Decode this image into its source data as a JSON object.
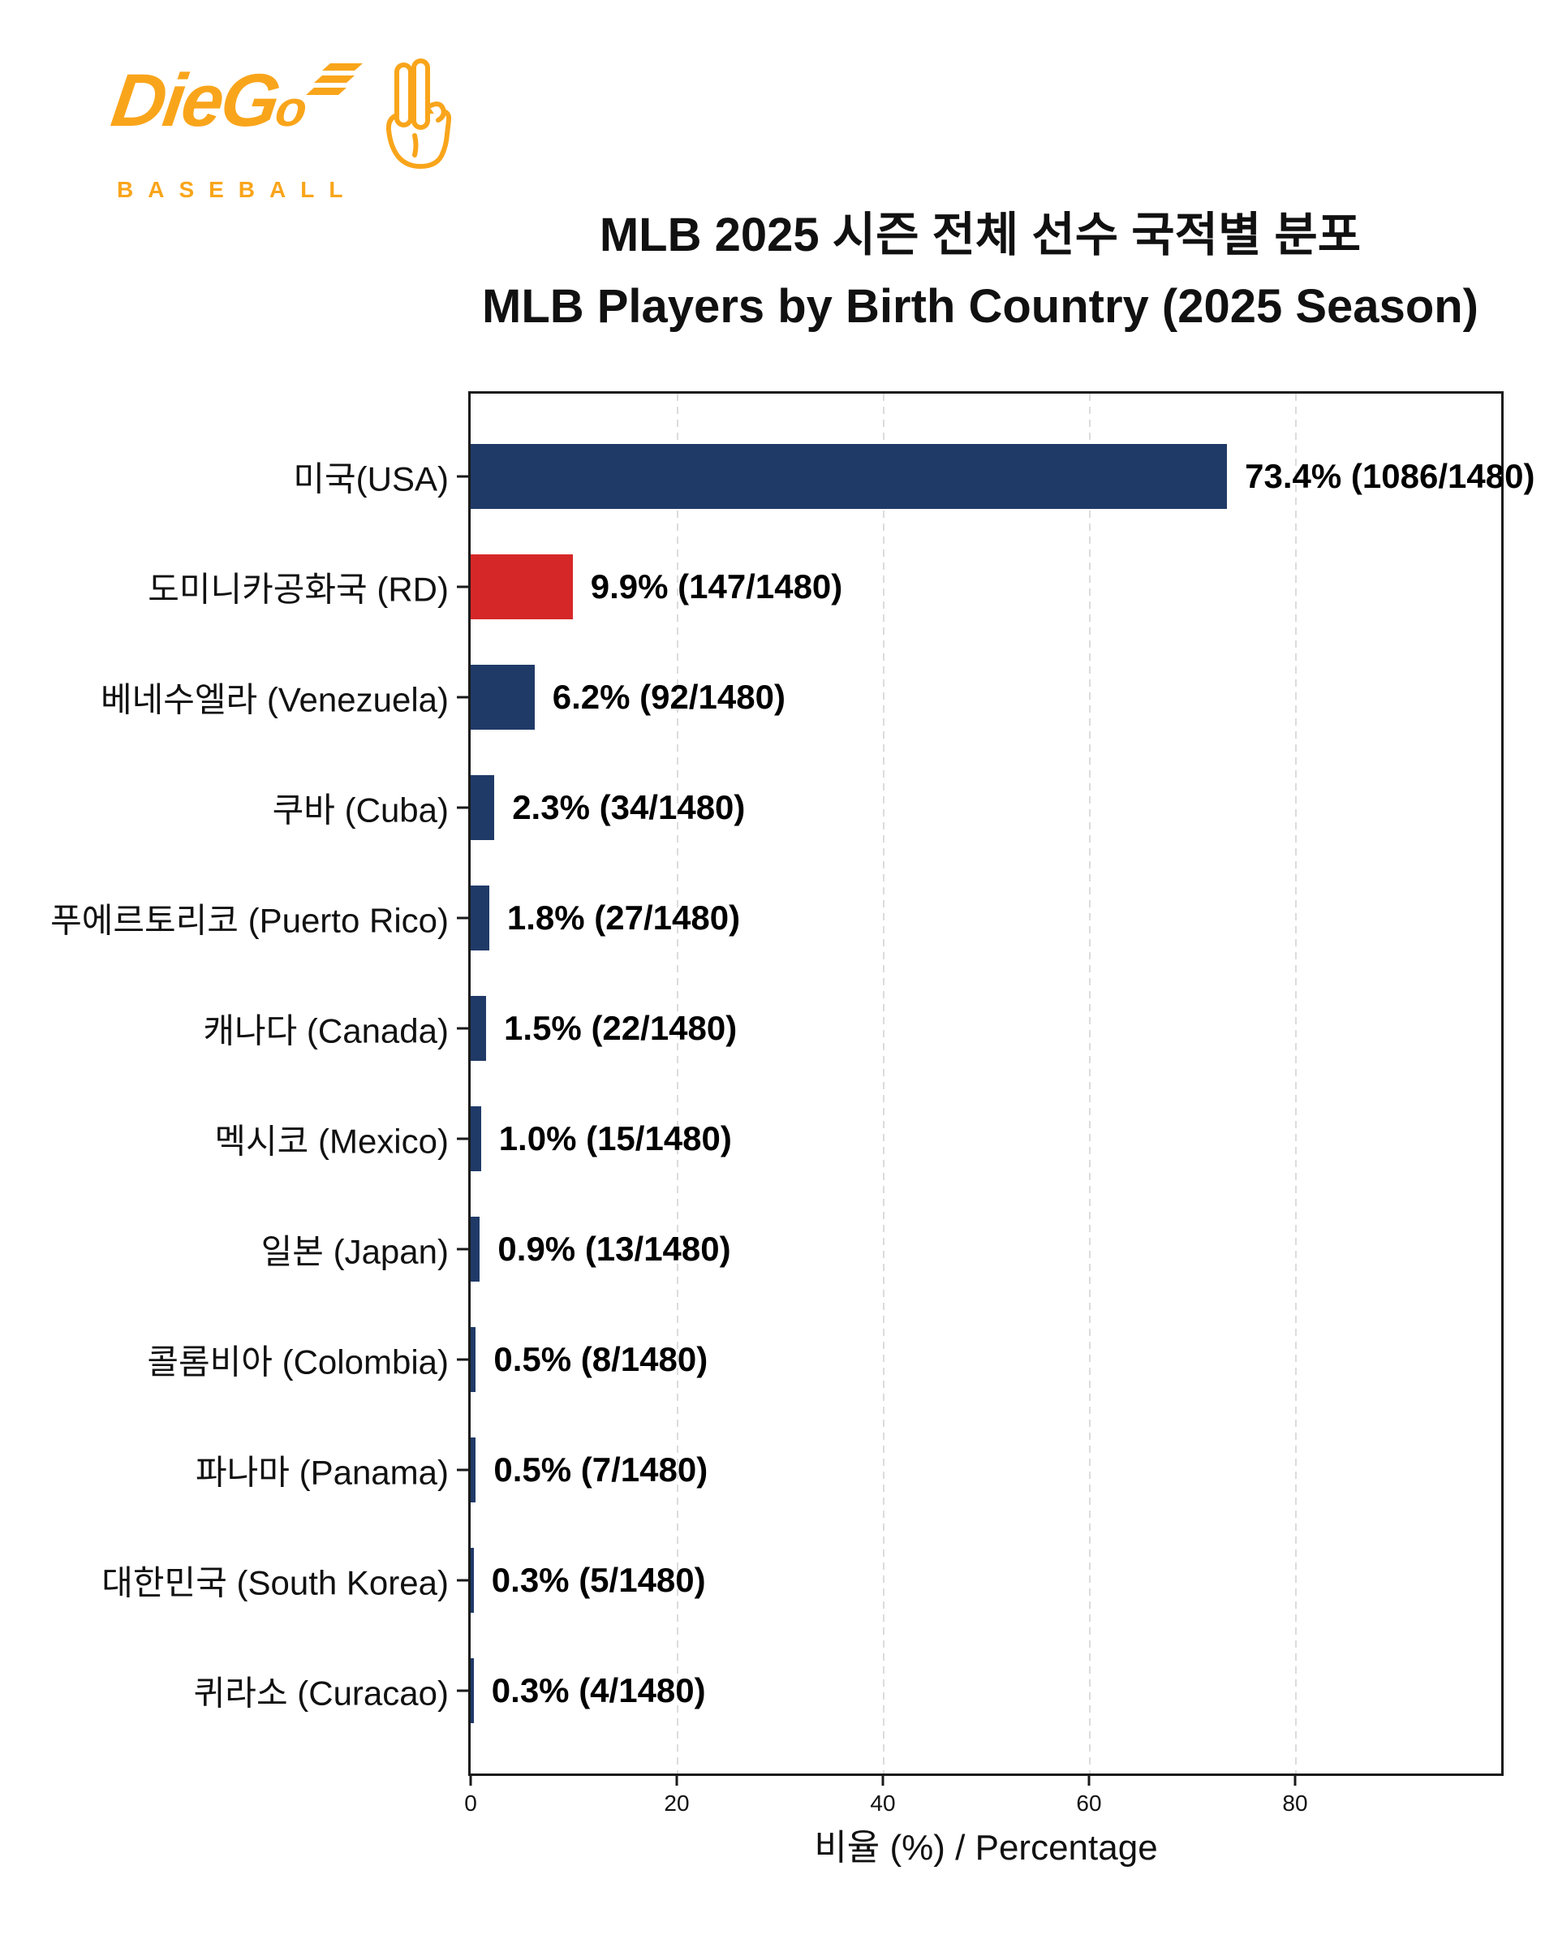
{
  "logo": {
    "brand_main": "DieG",
    "brand_tail": "o",
    "subtitle": "BASEBALL",
    "brand_color": "#F9A51B",
    "icon": "two-fingers-hand-icon"
  },
  "title": {
    "line1": "MLB 2025 시즌 전체 선수 국적별 분포",
    "line2": "MLB Players by Birth Country (2025 Season)"
  },
  "chart_data": {
    "type": "bar",
    "orientation": "horizontal",
    "title": "MLB 2025 시즌 전체 선수 국적별 분포 / MLB Players by Birth Country (2025 Season)",
    "categories": [
      "미국(USA)",
      "도미니카공화국 (RD)",
      "베네수엘라 (Venezuela)",
      "쿠바 (Cuba)",
      "푸에르토리코 (Puerto Rico)",
      "캐나다 (Canada)",
      "멕시코 (Mexico)",
      "일본 (Japan)",
      "콜롬비아 (Colombia)",
      "파나마 (Panama)",
      "대한민국 (South Korea)",
      "퀴라소 (Curacao)"
    ],
    "values": [
      73.4,
      9.9,
      6.2,
      2.3,
      1.8,
      1.5,
      1.0,
      0.9,
      0.5,
      0.5,
      0.3,
      0.3
    ],
    "counts": [
      1086,
      147,
      92,
      34,
      27,
      22,
      15,
      13,
      8,
      7,
      5,
      4
    ],
    "total_players": 1480,
    "bar_labels": [
      "73.4% (1086/1480)",
      "9.9% (147/1480)",
      "6.2% (92/1480)",
      "2.3% (34/1480)",
      "1.8% (27/1480)",
      "1.5% (22/1480)",
      "1.0% (15/1480)",
      "0.9% (13/1480)",
      "0.5% (8/1480)",
      "0.5% (7/1480)",
      "0.3% (5/1480)",
      "0.3% (4/1480)"
    ],
    "bar_colors": [
      "#203a68",
      "#d62728",
      "#203a68",
      "#203a68",
      "#203a68",
      "#203a68",
      "#203a68",
      "#203a68",
      "#203a68",
      "#203a68",
      "#203a68",
      "#203a68"
    ],
    "default_bar_color": "#203a68",
    "highlight_bar_color": "#d62728",
    "xlabel": "비율 (%) / Percentage",
    "ylabel": "",
    "x_ticks": [
      0,
      20,
      40,
      60,
      80
    ],
    "xlim": [
      0,
      100
    ],
    "grid": "vertical dashed gridlines at x ticks, color #dcdcdc",
    "legend": "none"
  }
}
